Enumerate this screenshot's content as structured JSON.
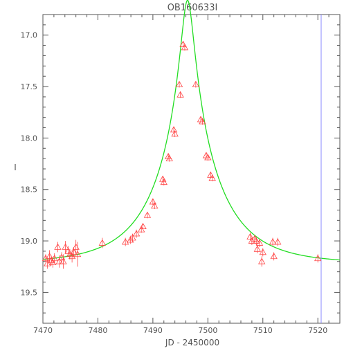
{
  "chart_data": {
    "type": "scatter",
    "title": "OB160633I",
    "xlabel": "JD - 2450000",
    "ylabel": "I",
    "xlim": [
      7470,
      7524
    ],
    "ylim": [
      19.8,
      16.8
    ],
    "y_inverted": true,
    "grid": false,
    "x_ticks": [
      7470,
      7480,
      7490,
      7500,
      7510,
      7520
    ],
    "x_tick_labels": [
      "7470",
      "7480",
      "7490",
      "7500",
      "7510",
      "7520"
    ],
    "y_ticks": [
      17.0,
      17.5,
      18.0,
      18.5,
      19.0,
      19.5
    ],
    "y_tick_labels": [
      "17.0",
      "17.5",
      "18.0",
      "18.5",
      "19.0",
      "19.5"
    ],
    "colors": {
      "points": "#ff4444",
      "model": "#22dd22",
      "marker_line": "#8888ff",
      "frame": "#555555"
    },
    "vertical_marker_x": 7520.6,
    "model": {
      "t0": 7496.3,
      "tE": 11.3,
      "u0": 0.095,
      "I_base": 19.22
    },
    "series": [
      {
        "marker": "triangle-open",
        "x": [
          7470.5,
          7470.8,
          7471.2,
          7471.5,
          7471.8,
          7472.1,
          7472.7,
          7473.0,
          7473.4,
          7473.7,
          7474.1,
          7474.6,
          7474.9,
          7475.3,
          7475.6,
          7476.0,
          7476.3,
          7480.8,
          7485.0,
          7485.9,
          7486.3,
          7487.0,
          7487.9,
          7488.2,
          7489.0,
          7490.0,
          7490.3,
          7491.8,
          7492.0,
          7492.8,
          7493.0,
          7493.8,
          7494.0,
          7494.8,
          7495.0,
          7495.5,
          7495.8,
          7497.8,
          7498.7,
          7499.0,
          7499.7,
          7500.0,
          7500.5,
          7500.8,
          7507.7,
          7508.0,
          7508.5,
          7508.8,
          7509.0,
          7509.4,
          7509.8,
          7510.0,
          7511.8,
          7512.0,
          7512.7,
          7520.0
        ],
        "y": [
          19.17,
          19.22,
          19.15,
          19.19,
          19.21,
          19.17,
          19.06,
          19.2,
          19.16,
          19.2,
          19.06,
          19.1,
          19.13,
          19.15,
          19.11,
          19.06,
          19.13,
          19.02,
          19.01,
          18.99,
          18.97,
          18.93,
          18.89,
          18.86,
          18.75,
          18.62,
          18.66,
          18.4,
          18.43,
          18.18,
          18.2,
          17.92,
          17.96,
          17.48,
          17.58,
          17.09,
          17.12,
          17.48,
          17.82,
          17.84,
          18.17,
          18.19,
          18.36,
          18.39,
          18.96,
          19.0,
          18.98,
          19.0,
          19.08,
          19.02,
          19.2,
          19.11,
          19.01,
          19.15,
          19.01,
          19.17
        ],
        "yerr": [
          0.04,
          0.05,
          0.06,
          0.05,
          0.05,
          0.05,
          0.05,
          0.06,
          0.05,
          0.07,
          0.06,
          0.05,
          0.05,
          0.06,
          0.05,
          0.07,
          0.12,
          0.05,
          0.04,
          0.04,
          0.04,
          0.04,
          0.03,
          0.03,
          0.03,
          0.03,
          0.03,
          0.03,
          0.03,
          0.03,
          0.03,
          0.03,
          0.03,
          0.03,
          0.03,
          0.03,
          0.03,
          0.03,
          0.03,
          0.03,
          0.03,
          0.03,
          0.03,
          0.03,
          0.04,
          0.04,
          0.04,
          0.04,
          0.04,
          0.04,
          0.05,
          0.04,
          0.04,
          0.04,
          0.04,
          0.04
        ]
      }
    ]
  }
}
